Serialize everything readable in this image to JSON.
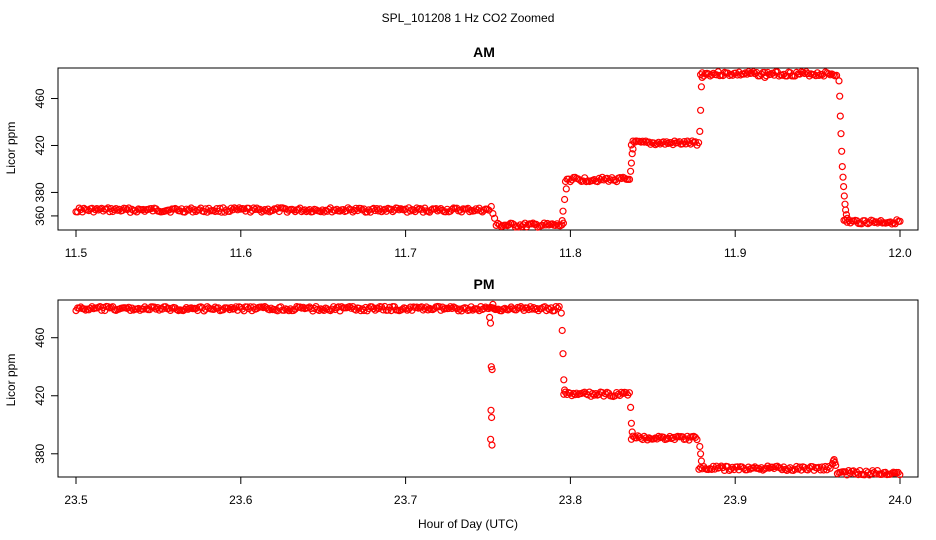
{
  "figure": {
    "title": "SPL_101208  1 Hz CO2 Zoomed",
    "xlabel": "Hour of Day (UTC)"
  },
  "colors": {
    "points": "#ff0000",
    "axis": "#000000"
  },
  "chart_data": [
    {
      "type": "scatter",
      "title": "AM",
      "ylabel": "Licor ppm",
      "xlim": [
        11.5,
        12.0
      ],
      "ylim": [
        348,
        486
      ],
      "xticks": [
        11.5,
        11.6,
        11.7,
        11.8,
        11.9,
        12.0
      ],
      "xtick_labels": [
        "11.5",
        "11.6",
        "11.7",
        "11.8",
        "11.9",
        "12.0"
      ],
      "yticks": [
        360,
        380,
        420,
        460
      ],
      "ytick_labels": [
        "360",
        "380",
        "420",
        "460"
      ],
      "segments": [
        {
          "x_start": 11.5,
          "x_end": 11.751,
          "y": 365
        },
        {
          "x_start": 11.755,
          "x_end": 11.796,
          "y": 352
        },
        {
          "x_start": 11.797,
          "x_end": 11.836,
          "y": 391
        },
        {
          "x_start": 11.837,
          "x_end": 11.878,
          "y": 422
        },
        {
          "x_start": 11.879,
          "x_end": 11.962,
          "y": 481
        },
        {
          "x_start": 11.966,
          "x_end": 12.0,
          "y": 355
        }
      ],
      "points": [
        [
          11.752,
          368
        ],
        [
          11.753,
          362
        ],
        [
          11.754,
          358
        ],
        [
          11.795,
          356
        ],
        [
          11.7955,
          364
        ],
        [
          11.7965,
          374
        ],
        [
          11.7975,
          383
        ],
        [
          11.8365,
          398
        ],
        [
          11.837,
          405
        ],
        [
          11.8375,
          413
        ],
        [
          11.838,
          417
        ],
        [
          11.8785,
          432
        ],
        [
          11.879,
          450
        ],
        [
          11.8795,
          470
        ],
        [
          11.88,
          478
        ],
        [
          11.963,
          475
        ],
        [
          11.9634,
          462
        ],
        [
          11.9638,
          445
        ],
        [
          11.9642,
          430
        ],
        [
          11.9646,
          415
        ],
        [
          11.965,
          402
        ],
        [
          11.9654,
          393
        ],
        [
          11.9658,
          385
        ],
        [
          11.9662,
          377
        ],
        [
          11.9666,
          370
        ],
        [
          11.967,
          365
        ],
        [
          11.9675,
          361
        ],
        [
          11.968,
          358
        ]
      ],
      "outliers": [
        [
          11.918,
          478
        ]
      ]
    },
    {
      "type": "scatter",
      "title": "PM",
      "ylabel": "Licor ppm",
      "xlim": [
        23.5,
        24.0
      ],
      "ylim": [
        364,
        486
      ],
      "xticks": [
        23.5,
        23.6,
        23.7,
        23.8,
        23.9,
        24.0
      ],
      "xtick_labels": [
        "23.5",
        "23.6",
        "23.7",
        "23.8",
        "23.9",
        "24.0"
      ],
      "yticks": [
        380,
        420,
        460
      ],
      "ytick_labels": [
        "380",
        "420",
        "460"
      ],
      "segments": [
        {
          "x_start": 23.5,
          "x_end": 23.794,
          "y": 480
        },
        {
          "x_start": 23.796,
          "x_end": 23.836,
          "y": 421
        },
        {
          "x_start": 23.837,
          "x_end": 23.877,
          "y": 391
        },
        {
          "x_start": 23.878,
          "x_end": 23.958,
          "y": 370
        },
        {
          "x_start": 23.962,
          "x_end": 24.0,
          "y": 367
        }
      ],
      "points": [
        [
          23.751,
          474
        ],
        [
          23.7515,
          470
        ],
        [
          23.752,
          440
        ],
        [
          23.7525,
          438
        ],
        [
          23.7518,
          410
        ],
        [
          23.7522,
          405
        ],
        [
          23.7516,
          390
        ],
        [
          23.7524,
          386
        ],
        [
          23.753,
          483
        ],
        [
          23.7535,
          480
        ],
        [
          23.7945,
          477
        ],
        [
          23.795,
          465
        ],
        [
          23.7955,
          449
        ],
        [
          23.796,
          431
        ],
        [
          23.7965,
          424
        ],
        [
          23.8365,
          412
        ],
        [
          23.837,
          401
        ],
        [
          23.8375,
          395
        ],
        [
          23.8785,
          385
        ],
        [
          23.879,
          380
        ],
        [
          23.8795,
          375
        ],
        [
          23.959,
          373
        ],
        [
          23.9595,
          375
        ],
        [
          23.96,
          376
        ],
        [
          23.9605,
          374
        ],
        [
          23.961,
          372
        ]
      ],
      "outliers": []
    }
  ]
}
